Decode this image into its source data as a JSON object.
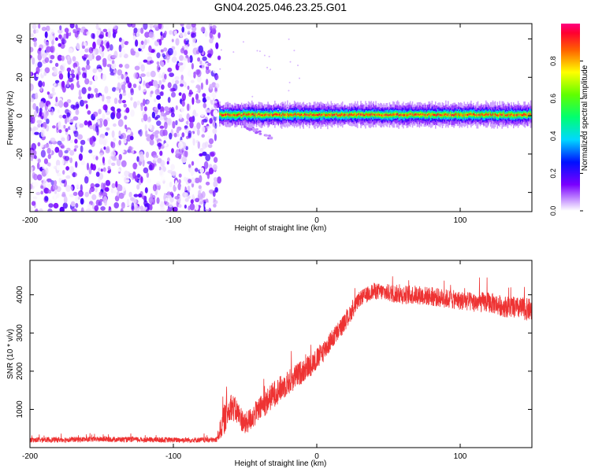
{
  "title": "GN04.2025.046.23.25.G01",
  "chart_data": [
    {
      "type": "heatmap",
      "xlabel": "Height of straight line (km)",
      "ylabel": "Frequency (Hz)",
      "xlim": [
        -200,
        150
      ],
      "ylim": [
        -50,
        48
      ],
      "xticks": [
        -200,
        -100,
        0,
        100
      ],
      "yticks": [
        -40,
        -20,
        0,
        20,
        40
      ],
      "colorbar": {
        "label": "Normalized spectral amplitude",
        "range": [
          0,
          1
        ],
        "ticks": [
          0.0,
          0.2,
          0.4,
          0.6,
          0.8
        ],
        "tick_labels": [
          "0.0",
          "0.2",
          "0.4",
          "0.6",
          "0.8"
        ]
      },
      "regions": [
        {
          "x_range": [
            -200,
            -68
          ],
          "y_range": [
            -50,
            48
          ],
          "description_level": "broadband noise",
          "amplitude_range": [
            0.0,
            0.2
          ]
        },
        {
          "x_range": [
            -68,
            150
          ],
          "y_range": [
            -3,
            3
          ],
          "description_level": "narrow signal band at ~0 Hz",
          "amplitude_range": [
            0.3,
            1.0
          ]
        },
        {
          "x_range": [
            -60,
            -30
          ],
          "y_range": [
            -12,
            -2
          ],
          "description_level": "weak descending tail",
          "amplitude_range": [
            0.0,
            0.1
          ]
        }
      ],
      "signal_center_freq": 0.5,
      "colors": {
        "low": "#d8b8ff",
        "mid_low": "#6a00ff",
        "mid": "#00ff60",
        "high": "#ff0030"
      }
    },
    {
      "type": "line",
      "xlabel": "Height of straight line (km)",
      "ylabel": "SNR (10 * v/v)",
      "xlim": [
        -200,
        150
      ],
      "ylim": [
        0,
        4900
      ],
      "xticks": [
        -200,
        -100,
        0,
        100
      ],
      "yticks": [
        1000,
        2000,
        3000,
        4000
      ],
      "series_color": "#ee3333",
      "envelope": {
        "x": [
          -200,
          -150,
          -100,
          -70,
          -65,
          -60,
          -55,
          -50,
          -40,
          -30,
          -20,
          -10,
          0,
          10,
          20,
          30,
          40,
          50,
          60,
          70,
          80,
          90,
          100,
          110,
          120,
          130,
          140,
          150
        ],
        "y": [
          200,
          220,
          200,
          200,
          700,
          1100,
          900,
          600,
          1000,
          1400,
          1700,
          2000,
          2300,
          2800,
          3300,
          3900,
          4100,
          4050,
          4000,
          4000,
          3950,
          3900,
          3850,
          3800,
          3800,
          3700,
          3650,
          3600
        ]
      },
      "noise_amplitude": {
        "x": [
          -200,
          -70,
          -65,
          -50,
          -30,
          0,
          30,
          60,
          100,
          150
        ],
        "y": [
          70,
          70,
          400,
          300,
          350,
          300,
          200,
          250,
          250,
          300
        ]
      }
    }
  ]
}
